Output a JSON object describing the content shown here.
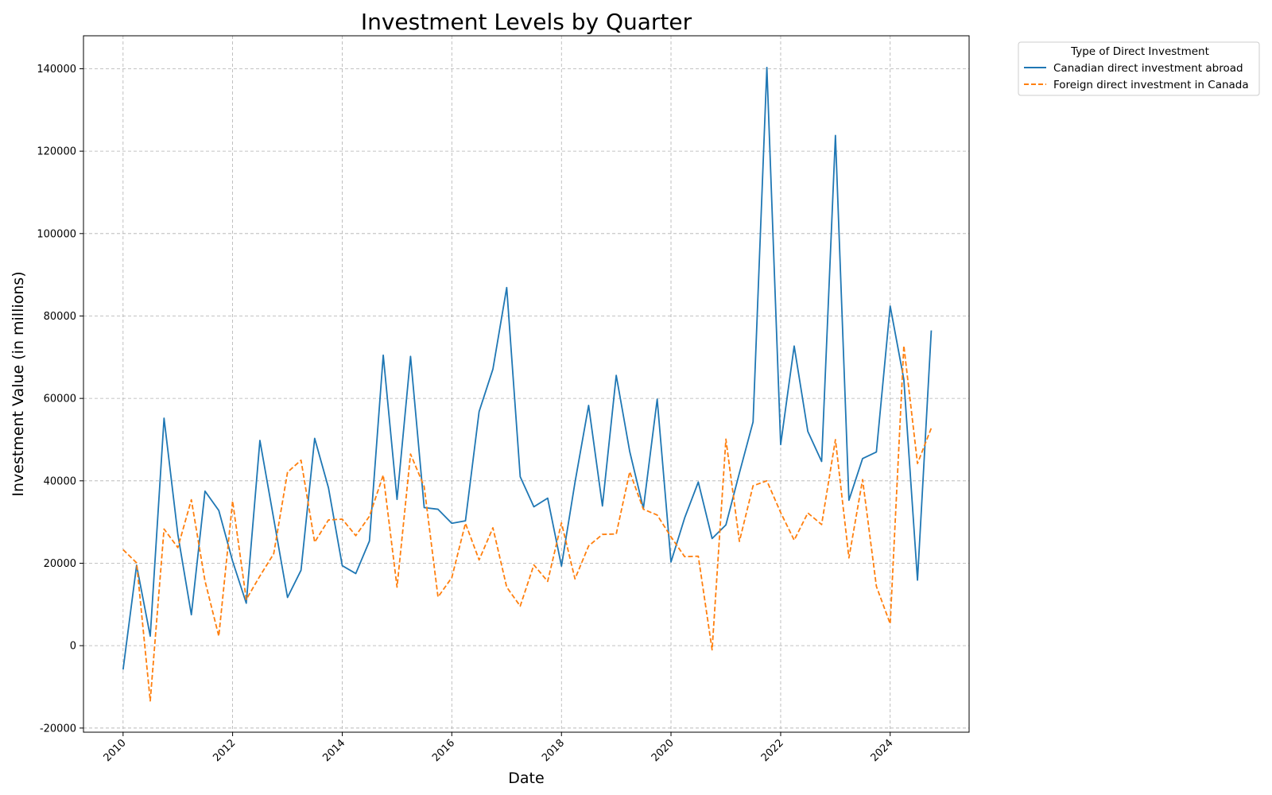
{
  "chart_data": {
    "type": "line",
    "title": "Investment Levels by Quarter",
    "xlabel": "Date",
    "ylabel": "Investment Value (in millions)",
    "x_axis_type": "date",
    "x_tick_labels": [
      "2010",
      "2012",
      "2014",
      "2016",
      "2018",
      "2020",
      "2022",
      "2024"
    ],
    "y_ticks": [
      -20000,
      0,
      20000,
      40000,
      60000,
      80000,
      100000,
      120000,
      140000
    ],
    "xlim": [
      "2009-04-12",
      "2025-06-10"
    ],
    "ylim": [
      -21000,
      148000
    ],
    "grid": true,
    "legend": {
      "title": "Type of Direct Investment",
      "placement": "outside-top-right"
    },
    "x": [
      "2010-01-01",
      "2010-04-01",
      "2010-07-01",
      "2010-10-01",
      "2011-01-01",
      "2011-04-01",
      "2011-07-01",
      "2011-10-01",
      "2012-01-01",
      "2012-04-01",
      "2012-07-01",
      "2012-10-01",
      "2013-01-01",
      "2013-04-01",
      "2013-07-01",
      "2013-10-01",
      "2014-01-01",
      "2014-04-01",
      "2014-07-01",
      "2014-10-01",
      "2015-01-01",
      "2015-04-01",
      "2015-07-01",
      "2015-10-01",
      "2016-01-01",
      "2016-04-01",
      "2016-07-01",
      "2016-10-01",
      "2017-01-01",
      "2017-04-01",
      "2017-07-01",
      "2017-10-01",
      "2018-01-01",
      "2018-04-01",
      "2018-07-01",
      "2018-10-01",
      "2019-01-01",
      "2019-04-01",
      "2019-07-01",
      "2019-10-01",
      "2020-01-01",
      "2020-04-01",
      "2020-07-01",
      "2020-10-01",
      "2021-01-01",
      "2021-04-01",
      "2021-07-01",
      "2021-10-01",
      "2022-01-01",
      "2022-04-01",
      "2022-07-01",
      "2022-10-01",
      "2023-01-01",
      "2023-04-01",
      "2023-07-01",
      "2023-10-01",
      "2024-01-01",
      "2024-04-01",
      "2024-07-01",
      "2024-10-01"
    ],
    "series": [
      {
        "name": "Canadian direct investment abroad",
        "color": "#1f77b4",
        "dash": "solid",
        "values": [
          -5800,
          19500,
          2300,
          55200,
          27000,
          7500,
          37500,
          32800,
          20500,
          10300,
          49800,
          30800,
          11700,
          18300,
          50300,
          38300,
          19400,
          17500,
          25400,
          70500,
          35500,
          70200,
          33500,
          33100,
          29700,
          30300,
          56800,
          67100,
          86900,
          41000,
          33700,
          35800,
          19300,
          39600,
          58300,
          33900,
          65600,
          47100,
          33300,
          59800,
          20300,
          31000,
          39700,
          26000,
          29300,
          41900,
          54300,
          140300,
          48800,
          72700,
          52000,
          44700,
          123800,
          35300,
          45400,
          47000,
          82400,
          64600,
          15900,
          76500
        ]
      },
      {
        "name": "Foreign direct investment in Canada",
        "color": "#ff7f0e",
        "dash": "dashed",
        "values": [
          23300,
          20100,
          -13400,
          28300,
          23800,
          35400,
          15700,
          2300,
          35100,
          11200,
          16900,
          22300,
          42100,
          45000,
          25100,
          30500,
          30700,
          26700,
          31400,
          41400,
          14200,
          46500,
          38600,
          11800,
          16500,
          29700,
          20800,
          28600,
          14200,
          9600,
          19600,
          15600,
          29800,
          16200,
          24200,
          27000,
          27100,
          42200,
          33100,
          31700,
          26400,
          21600,
          21700,
          -1000,
          50100,
          25300,
          38800,
          40000,
          32300,
          25600,
          32200,
          29400,
          50000,
          21300,
          40300,
          14400,
          5300,
          72800,
          44200,
          52800
        ]
      }
    ]
  }
}
